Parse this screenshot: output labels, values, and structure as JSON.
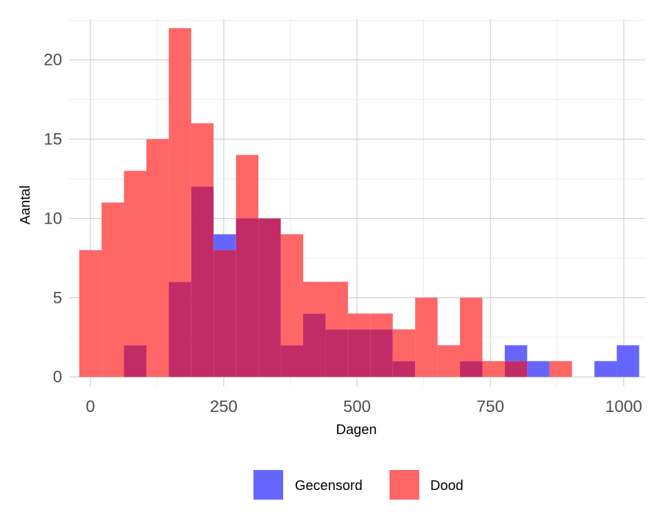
{
  "chart_data": {
    "type": "histogram",
    "xlabel": "Dagen",
    "ylabel": "Aantal",
    "xlim": [
      -40,
      1040
    ],
    "ylim": [
      -0.6,
      22.6
    ],
    "x_ticks": [
      0,
      250,
      500,
      750,
      1000
    ],
    "x_tick_labels": [
      "0",
      "250",
      "500",
      "750",
      "1000"
    ],
    "y_ticks": [
      0,
      5,
      10,
      15,
      20
    ],
    "y_tick_labels": [
      "0",
      "5",
      "10",
      "15",
      "20"
    ],
    "grid": true,
    "legend_position": "bottom",
    "bin_width": 42,
    "overlay_color": "#c12b66",
    "series": [
      {
        "name": "Gecensord",
        "color": "#6666ff",
        "bins": [
          {
            "start": 63,
            "end": 105,
            "count": 2
          },
          {
            "start": 147,
            "end": 189,
            "count": 6
          },
          {
            "start": 189,
            "end": 231,
            "count": 12
          },
          {
            "start": 231,
            "end": 273,
            "count": 9
          },
          {
            "start": 273,
            "end": 315,
            "count": 10
          },
          {
            "start": 315,
            "end": 357,
            "count": 10
          },
          {
            "start": 357,
            "end": 399,
            "count": 2
          },
          {
            "start": 399,
            "end": 441,
            "count": 4
          },
          {
            "start": 441,
            "end": 483,
            "count": 3
          },
          {
            "start": 483,
            "end": 525,
            "count": 3
          },
          {
            "start": 525,
            "end": 567,
            "count": 3
          },
          {
            "start": 567,
            "end": 609,
            "count": 1
          },
          {
            "start": 693,
            "end": 735,
            "count": 1
          },
          {
            "start": 777,
            "end": 819,
            "count": 2
          },
          {
            "start": 819,
            "end": 861,
            "count": 1
          },
          {
            "start": 945,
            "end": 987,
            "count": 1
          },
          {
            "start": 987,
            "end": 1029,
            "count": 2
          }
        ]
      },
      {
        "name": "Dood",
        "color": "#ff6666",
        "bins": [
          {
            "start": -21,
            "end": 21,
            "count": 8
          },
          {
            "start": 21,
            "end": 63,
            "count": 11
          },
          {
            "start": 63,
            "end": 105,
            "count": 13
          },
          {
            "start": 105,
            "end": 147,
            "count": 15
          },
          {
            "start": 147,
            "end": 189,
            "count": 22
          },
          {
            "start": 189,
            "end": 231,
            "count": 16
          },
          {
            "start": 231,
            "end": 273,
            "count": 8
          },
          {
            "start": 273,
            "end": 315,
            "count": 14
          },
          {
            "start": 315,
            "end": 357,
            "count": 10
          },
          {
            "start": 357,
            "end": 399,
            "count": 9
          },
          {
            "start": 399,
            "end": 441,
            "count": 6
          },
          {
            "start": 441,
            "end": 483,
            "count": 6
          },
          {
            "start": 483,
            "end": 525,
            "count": 4
          },
          {
            "start": 525,
            "end": 567,
            "count": 4
          },
          {
            "start": 567,
            "end": 609,
            "count": 3
          },
          {
            "start": 609,
            "end": 651,
            "count": 5
          },
          {
            "start": 651,
            "end": 693,
            "count": 2
          },
          {
            "start": 693,
            "end": 735,
            "count": 5
          },
          {
            "start": 735,
            "end": 777,
            "count": 1
          },
          {
            "start": 777,
            "end": 819,
            "count": 1
          },
          {
            "start": 861,
            "end": 903,
            "count": 1
          }
        ]
      }
    ]
  }
}
